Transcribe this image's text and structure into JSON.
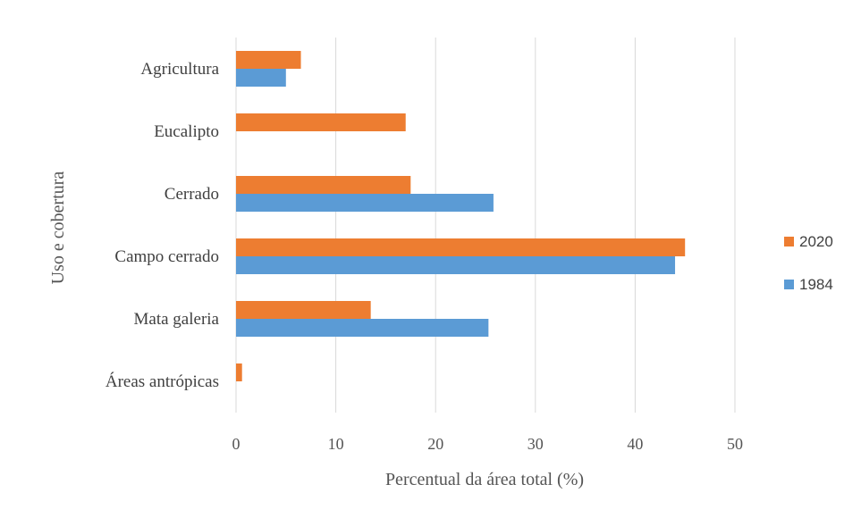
{
  "chart_data": {
    "type": "bar",
    "orientation": "horizontal",
    "categories": [
      "Agricultura",
      "Eucalipto",
      "Cerrado",
      "Campo cerrado",
      "Mata galeria",
      "Áreas antrópicas"
    ],
    "series": [
      {
        "name": "2020",
        "color": "#ED7D31",
        "values": [
          6.5,
          17.0,
          17.5,
          45.0,
          13.5,
          0.6
        ]
      },
      {
        "name": "1984",
        "color": "#5B9BD5",
        "values": [
          5.0,
          0.0,
          25.8,
          44.0,
          25.3,
          0.0
        ]
      }
    ],
    "xlabel": "Percentual da área total (%)",
    "ylabel": "Uso e cobertura",
    "xlim": [
      0,
      50
    ],
    "xticks": [
      "0",
      "10",
      "20",
      "30",
      "40",
      "50"
    ],
    "grid": true,
    "legend_position": "right"
  }
}
